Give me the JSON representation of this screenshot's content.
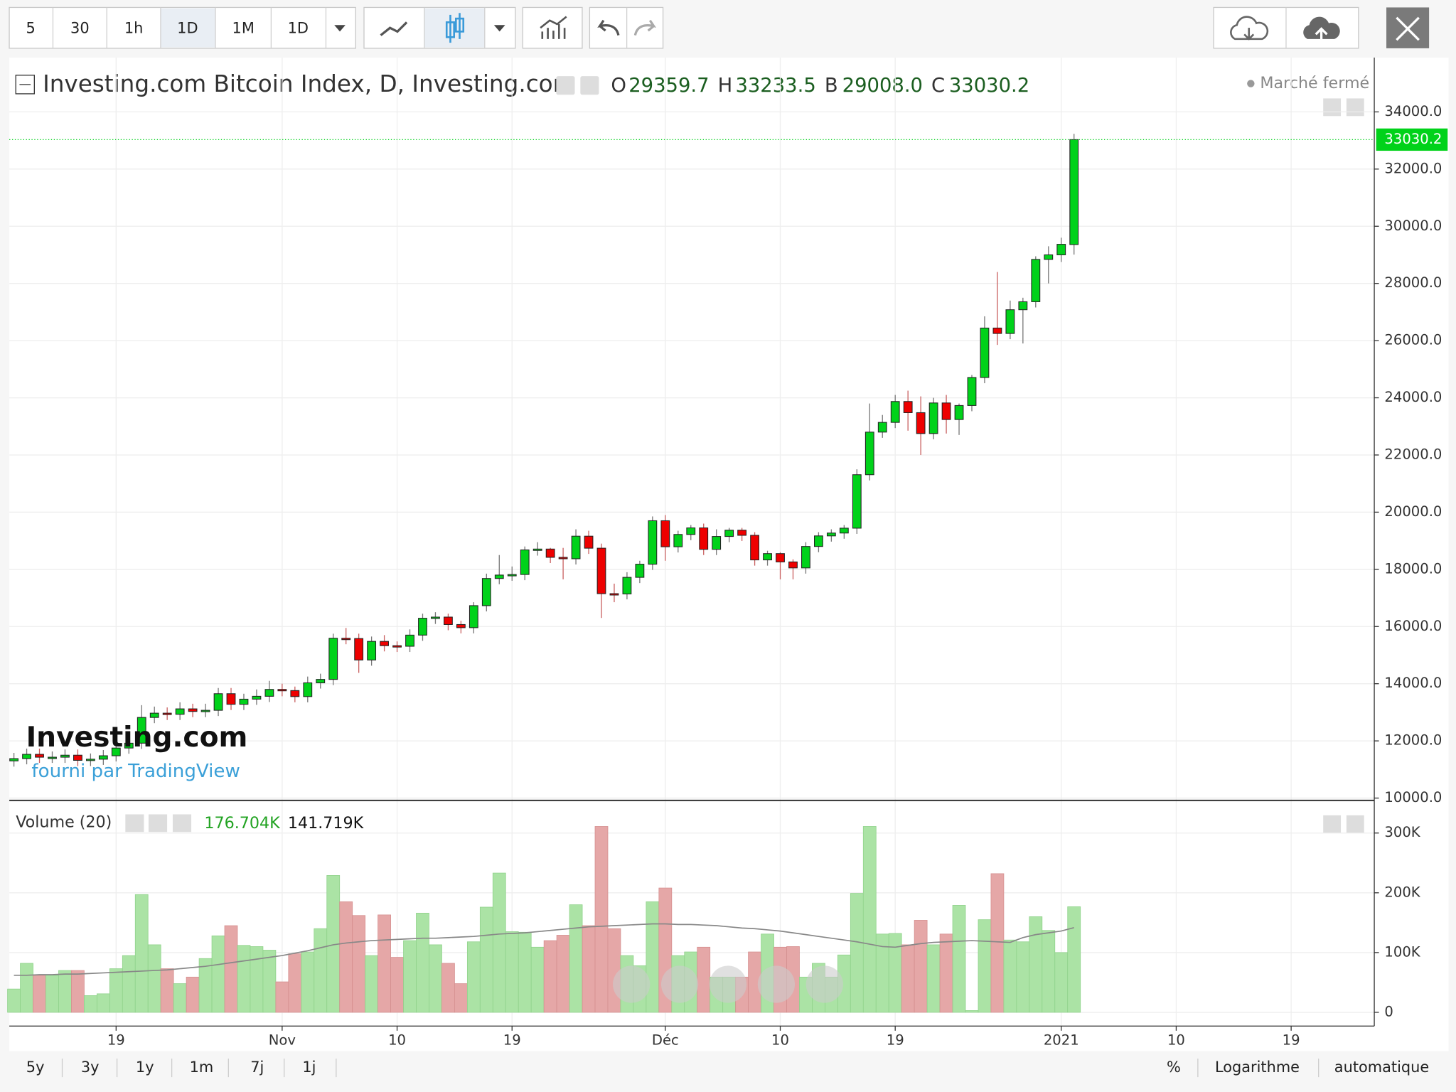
{
  "toolbar": {
    "intervals": [
      "5",
      "30",
      "1h",
      "1D",
      "1M",
      "1D"
    ]
  },
  "header": {
    "title": "Investing.com Bitcoin Index, D, Investing.com",
    "market_status": "Marché fermé",
    "ohlc": [
      {
        "key": "O",
        "value": "29359.7"
      },
      {
        "key": "H",
        "value": "33233.5"
      },
      {
        "key": "B",
        "value": "29008.0"
      },
      {
        "key": "C",
        "value": "33030.2"
      }
    ]
  },
  "watermark": {
    "logo": "Investing.com",
    "credit": "fourni par TradingView"
  },
  "volume_pane": {
    "title": "Volume (20)",
    "last_values": [
      "176.704K",
      "141.719K"
    ]
  },
  "footer": {
    "ranges": [
      "5y",
      "3y",
      "1y",
      "1m",
      "7j",
      "1j"
    ],
    "options": [
      "%",
      "Logarithme",
      "automatique"
    ]
  },
  "chart_data": {
    "type": "candlestick",
    "grid": true,
    "up_color": "#00d21a",
    "down_color": "#ee0000",
    "last_line_color": "#00d21a",
    "x": [
      "2020-10-11",
      "2020-10-12",
      "2020-10-13",
      "2020-10-14",
      "2020-10-15",
      "2020-10-16",
      "2020-10-17",
      "2020-10-18",
      "2020-10-19",
      "2020-10-20",
      "2020-10-21",
      "2020-10-22",
      "2020-10-23",
      "2020-10-24",
      "2020-10-25",
      "2020-10-26",
      "2020-10-27",
      "2020-10-28",
      "2020-10-29",
      "2020-10-30",
      "2020-10-31",
      "2020-11-01",
      "2020-11-02",
      "2020-11-03",
      "2020-11-04",
      "2020-11-05",
      "2020-11-06",
      "2020-11-07",
      "2020-11-08",
      "2020-11-09",
      "2020-11-10",
      "2020-11-11",
      "2020-11-12",
      "2020-11-13",
      "2020-11-14",
      "2020-11-15",
      "2020-11-16",
      "2020-11-17",
      "2020-11-18",
      "2020-11-19",
      "2020-11-20",
      "2020-11-21",
      "2020-11-22",
      "2020-11-23",
      "2020-11-24",
      "2020-11-25",
      "2020-11-26",
      "2020-11-27",
      "2020-11-28",
      "2020-11-29",
      "2020-11-30",
      "2020-12-01",
      "2020-12-02",
      "2020-12-03",
      "2020-12-04",
      "2020-12-05",
      "2020-12-06",
      "2020-12-07",
      "2020-12-08",
      "2020-12-09",
      "2020-12-10",
      "2020-12-11",
      "2020-12-12",
      "2020-12-13",
      "2020-12-14",
      "2020-12-15",
      "2020-12-16",
      "2020-12-17",
      "2020-12-18",
      "2020-12-19",
      "2020-12-20",
      "2020-12-21",
      "2020-12-22",
      "2020-12-23",
      "2020-12-24",
      "2020-12-25",
      "2020-12-26",
      "2020-12-27",
      "2020-12-28",
      "2020-12-29",
      "2020-12-30",
      "2020-12-31",
      "2021-01-01",
      "2021-01-02"
    ],
    "open": [
      11300,
      11380,
      11530,
      11430,
      11430,
      11500,
      11320,
      11360,
      11480,
      11750,
      11920,
      12820,
      12970,
      12930,
      13120,
      13030,
      13070,
      13650,
      13280,
      13460,
      13560,
      13800,
      13760,
      13550,
      14030,
      14150,
      15590,
      15580,
      14830,
      15480,
      15330,
      15310,
      15700,
      16290,
      16330,
      16070,
      15960,
      16730,
      17680,
      17800,
      17820,
      18680,
      18710,
      18420,
      18370,
      19160,
      18740,
      17150,
      17140,
      17720,
      18180,
      19700,
      18790,
      19220,
      19450,
      18700,
      19150,
      19370,
      19190,
      18330,
      18550,
      18260,
      18050,
      18800,
      19170,
      19270,
      19440,
      21310,
      22800,
      23140,
      23870,
      23480,
      22750,
      23820,
      23240,
      23730,
      24710,
      26440,
      26250,
      27080,
      27360,
      28840,
      29000,
      29359.7
    ],
    "high": [
      11580,
      11730,
      11730,
      11630,
      11700,
      11700,
      11560,
      11680,
      11950,
      12120,
      13250,
      13200,
      13170,
      13350,
      13300,
      13300,
      13850,
      13850,
      13650,
      13800,
      14100,
      14000,
      13900,
      14250,
      14350,
      15750,
      15950,
      15750,
      15650,
      15700,
      15480,
      15900,
      16450,
      16500,
      16450,
      16200,
      16850,
      17850,
      18500,
      18100,
      18800,
      18950,
      18750,
      18750,
      19400,
      19350,
      18900,
      17500,
      17900,
      18300,
      19850,
      19900,
      19350,
      19550,
      19600,
      19400,
      19450,
      19450,
      19300,
      18650,
      18600,
      18350,
      18950,
      19300,
      19400,
      19550,
      21500,
      23800,
      23400,
      24100,
      24250,
      24050,
      24000,
      24100,
      23800,
      24800,
      26850,
      28400,
      27400,
      27500,
      28950,
      29300,
      29600,
      33233.5
    ],
    "low": [
      11100,
      11180,
      11230,
      11230,
      11230,
      11120,
      11120,
      11160,
      11280,
      11550,
      11720,
      12620,
      12730,
      12730,
      12830,
      12830,
      12870,
      13080,
      13080,
      13260,
      13360,
      13560,
      13350,
      13350,
      13830,
      13950,
      15380,
      14380,
      14630,
      15130,
      15110,
      15110,
      15500,
      16090,
      15870,
      15760,
      15760,
      16530,
      17480,
      17600,
      17620,
      18480,
      18220,
      17650,
      18170,
      18540,
      16300,
      16850,
      16950,
      17520,
      17980,
      18300,
      18590,
      19020,
      18500,
      18500,
      18950,
      18990,
      18130,
      18130,
      17650,
      17650,
      17850,
      18600,
      18970,
      19070,
      19240,
      21110,
      22600,
      22940,
      22850,
      22000,
      22550,
      22750,
      22700,
      23530,
      24510,
      25850,
      26050,
      25900,
      27160,
      28000,
      28750,
      29008.0
    ],
    "close": [
      11380,
      11530,
      11430,
      11430,
      11500,
      11320,
      11360,
      11480,
      11750,
      11920,
      12820,
      12970,
      12930,
      13120,
      13030,
      13070,
      13650,
      13280,
      13460,
      13560,
      13800,
      13760,
      13550,
      14030,
      14150,
      15590,
      15580,
      14830,
      15480,
      15330,
      15310,
      15700,
      16290,
      16330,
      16070,
      15960,
      16730,
      17680,
      17800,
      17820,
      18680,
      18710,
      18420,
      18370,
      19160,
      18740,
      17150,
      17140,
      17720,
      18180,
      19700,
      18790,
      19220,
      19450,
      18700,
      19150,
      19370,
      19190,
      18330,
      18550,
      18260,
      18050,
      18800,
      19170,
      19270,
      19440,
      21310,
      22800,
      23140,
      23870,
      23480,
      22750,
      23820,
      23240,
      23730,
      24710,
      26440,
      26250,
      27080,
      27360,
      28840,
      29000,
      29370,
      33030.2
    ],
    "xlim": [
      "2020-10-11",
      "2021-01-25"
    ],
    "xticks": [
      {
        "value": "2020-10-19",
        "label": "19"
      },
      {
        "value": "2020-11-01",
        "label": "Nov"
      },
      {
        "value": "2020-11-10",
        "label": "10"
      },
      {
        "value": "2020-11-19",
        "label": "19"
      },
      {
        "value": "2020-12-01",
        "label": "Déc"
      },
      {
        "value": "2020-12-10",
        "label": "10"
      },
      {
        "value": "2020-12-19",
        "label": "19"
      },
      {
        "value": "2021-01-01",
        "label": "2021"
      },
      {
        "value": "2021-01-10",
        "label": "10"
      },
      {
        "value": "2021-01-19",
        "label": "19"
      }
    ],
    "ylim": [
      9950,
      35900
    ],
    "yticks": [
      {
        "value": 10000,
        "label": "10000.0"
      },
      {
        "value": 12000,
        "label": "12000.0"
      },
      {
        "value": 14000,
        "label": "14000.0"
      },
      {
        "value": 16000,
        "label": "16000.0"
      },
      {
        "value": 18000,
        "label": "18000.0"
      },
      {
        "value": 20000,
        "label": "20000.0"
      },
      {
        "value": 22000,
        "label": "22000.0"
      },
      {
        "value": 24000,
        "label": "24000.0"
      },
      {
        "value": 26000,
        "label": "26000.0"
      },
      {
        "value": 28000,
        "label": "28000.0"
      },
      {
        "value": 30000,
        "label": "30000.0"
      },
      {
        "value": 32000,
        "label": "32000.0"
      },
      {
        "value": 34000,
        "label": "34000.0"
      }
    ],
    "volume": {
      "up_color": "#abe3a5",
      "down_color": "#e5a7a7",
      "values": [
        39,
        82,
        62,
        62,
        70,
        70,
        28,
        31,
        73,
        95,
        197,
        113,
        73,
        48,
        59,
        90,
        128,
        145,
        112,
        110,
        104,
        51,
        98,
        101,
        140,
        229,
        185,
        162,
        95,
        163,
        92,
        120,
        166,
        113,
        82,
        48,
        118,
        176,
        233,
        135,
        134,
        109,
        120,
        129,
        180,
        145,
        311,
        140,
        95,
        78,
        185,
        208,
        95,
        101,
        109,
        59,
        59,
        59,
        101,
        131,
        109,
        110,
        59,
        82,
        59,
        96,
        199,
        311,
        131,
        132,
        113,
        154,
        113,
        131,
        179,
        3,
        155,
        232,
        121,
        118,
        160,
        137,
        100,
        176.704
      ],
      "ma": {
        "color": "#888888",
        "values": [
          62,
          62,
          63,
          63,
          64,
          64,
          65,
          66,
          67,
          68,
          69,
          70,
          71,
          73,
          75,
          77,
          80,
          83,
          86,
          89,
          92,
          95,
          99,
          103,
          108,
          113,
          116,
          118,
          120,
          121,
          122,
          123,
          124,
          124,
          125,
          126,
          127,
          129,
          131,
          132,
          133,
          135,
          137,
          139,
          141,
          143,
          144,
          145,
          146,
          147,
          148,
          148,
          147,
          147,
          146,
          145,
          143,
          141,
          140,
          138,
          136,
          133,
          130,
          127,
          124,
          121,
          118,
          114,
          110,
          109,
          112,
          115,
          117,
          118,
          119,
          120,
          119,
          118,
          117,
          125,
          130,
          133,
          136,
          141.719
        ]
      },
      "ylim": [
        -23,
        339
      ],
      "yticks": [
        0,
        {
          "value": 100,
          "label": "100K"
        },
        {
          "value": 200,
          "label": "200K"
        },
        {
          "value": 300,
          "label": "300K"
        }
      ]
    }
  }
}
